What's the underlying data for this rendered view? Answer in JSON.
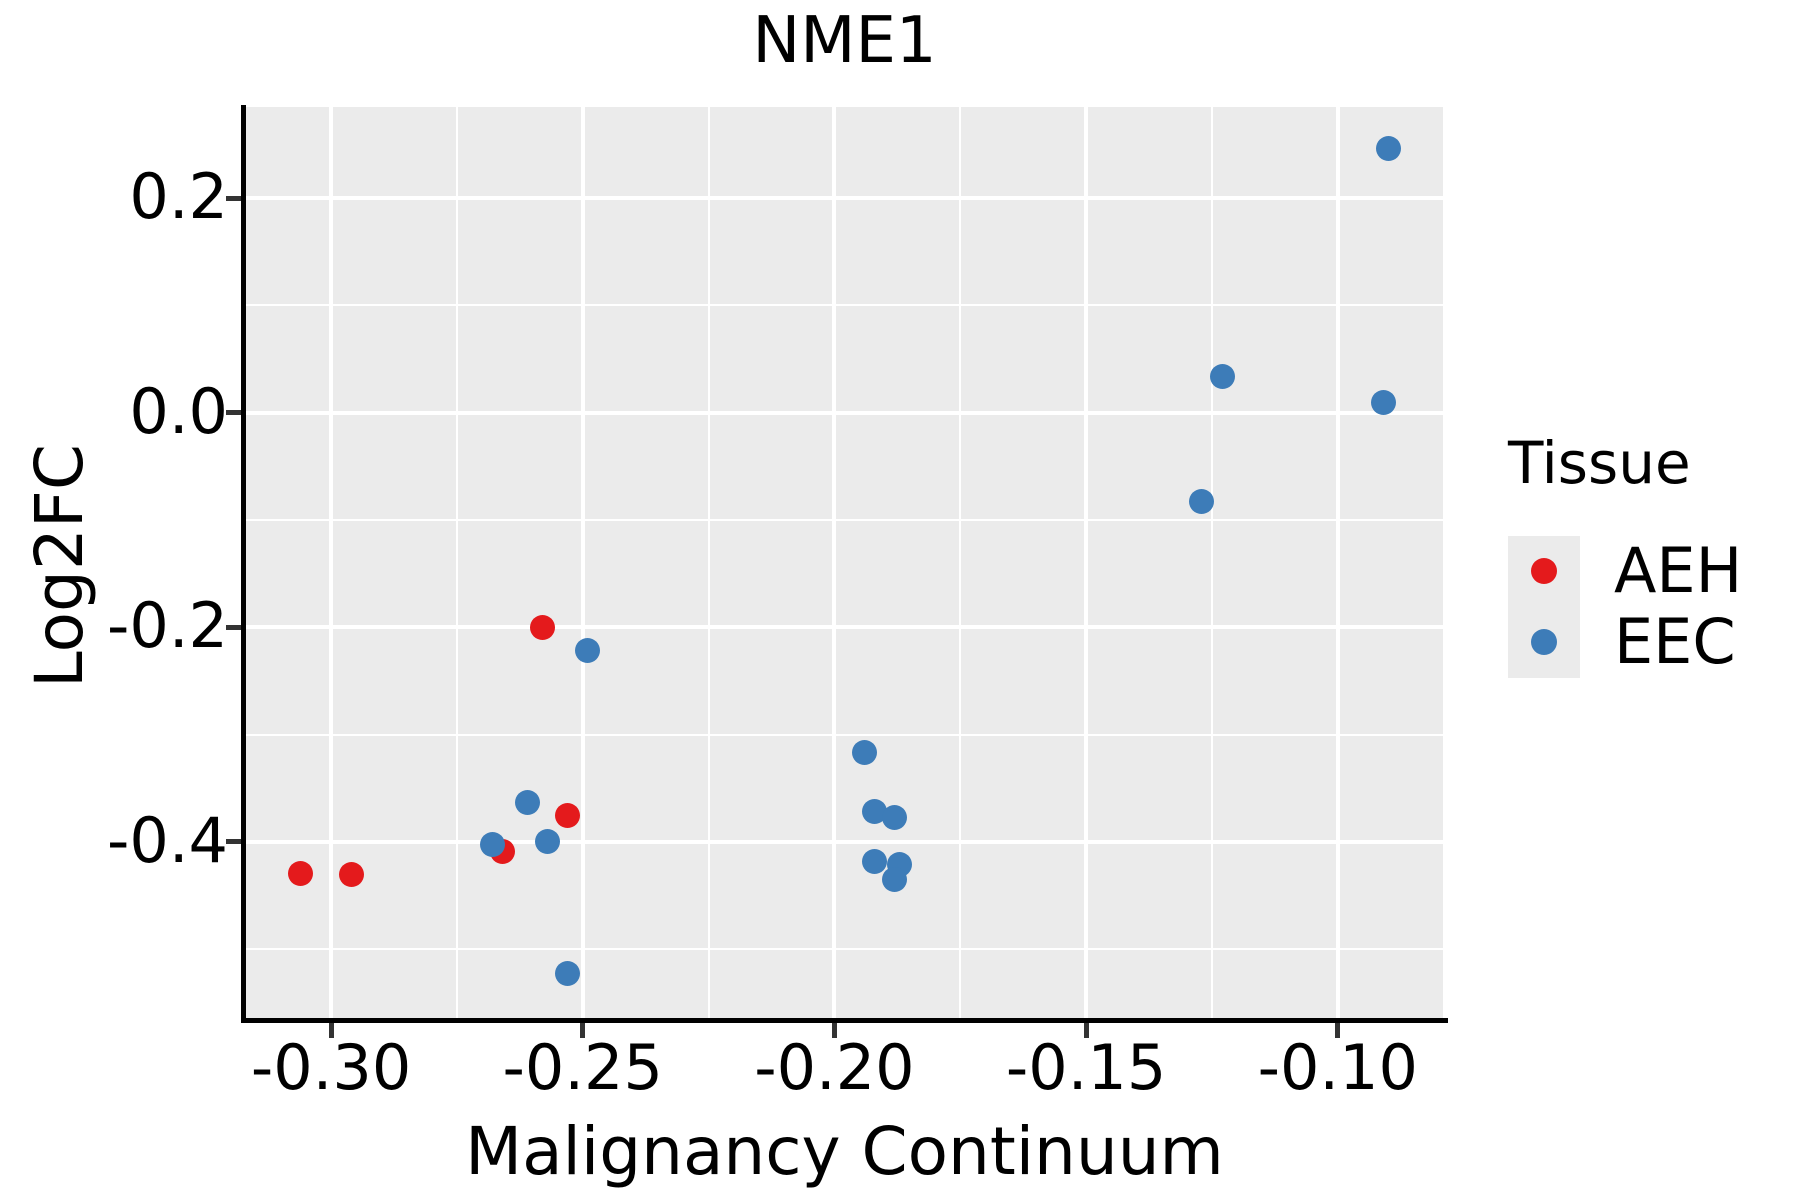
{
  "title": "NME1",
  "axes": {
    "x_title": "Malignancy Continuum",
    "y_title": "Log2FC",
    "x_ticks": {
      "values": [
        -0.3,
        -0.25,
        -0.2,
        -0.15,
        -0.1
      ],
      "labels": [
        "-0.30",
        "-0.25",
        "-0.20",
        "-0.15",
        "-0.10"
      ]
    },
    "y_ticks": {
      "values": [
        0.2,
        0.0,
        -0.2,
        -0.4
      ],
      "labels": [
        "0.2",
        "0.0",
        "-0.2",
        "-0.4"
      ]
    },
    "x_minor": [
      -0.275,
      -0.225,
      -0.175,
      -0.125
    ],
    "y_minor": [
      0.1,
      -0.1,
      -0.3,
      -0.5
    ]
  },
  "legend": {
    "title": "Tissue",
    "entries": [
      {
        "label": "AEH",
        "color": "#E41A1C"
      },
      {
        "label": "EEC",
        "color": "#3D7CB8"
      }
    ]
  },
  "colors": {
    "panel_background": "#EBEBEB",
    "gridline": "#FFFFFF",
    "aeh_red": "#E41A1C",
    "eec_blue": "#3D7CB8"
  },
  "chart_data": {
    "type": "scatter",
    "title": "NME1",
    "xlabel": "Malignancy Continuum",
    "ylabel": "Log2FC",
    "xlim": [
      -0.3169,
      -0.0791
    ],
    "ylim": [
      -0.566,
      0.285
    ],
    "grid": "on",
    "legend_position": "right",
    "series": [
      {
        "name": "AEH",
        "color": "#E41A1C",
        "points": [
          [
            -0.306,
            -0.429
          ],
          [
            -0.296,
            -0.43
          ],
          [
            -0.258,
            -0.2
          ],
          [
            -0.266,
            -0.409
          ],
          [
            -0.253,
            -0.375
          ]
        ]
      },
      {
        "name": "EEC",
        "color": "#3D7CB8",
        "points": [
          [
            -0.249,
            -0.222
          ],
          [
            -0.261,
            -0.363
          ],
          [
            -0.257,
            -0.4
          ],
          [
            -0.268,
            -0.402
          ],
          [
            -0.253,
            -0.523
          ],
          [
            -0.194,
            -0.317
          ],
          [
            -0.192,
            -0.372
          ],
          [
            -0.188,
            -0.377
          ],
          [
            -0.192,
            -0.418
          ],
          [
            -0.187,
            -0.421
          ],
          [
            -0.188,
            -0.435
          ],
          [
            -0.127,
            -0.083
          ],
          [
            -0.123,
            0.034
          ],
          [
            -0.091,
            0.01
          ],
          [
            -0.09,
            0.246
          ]
        ]
      }
    ]
  }
}
